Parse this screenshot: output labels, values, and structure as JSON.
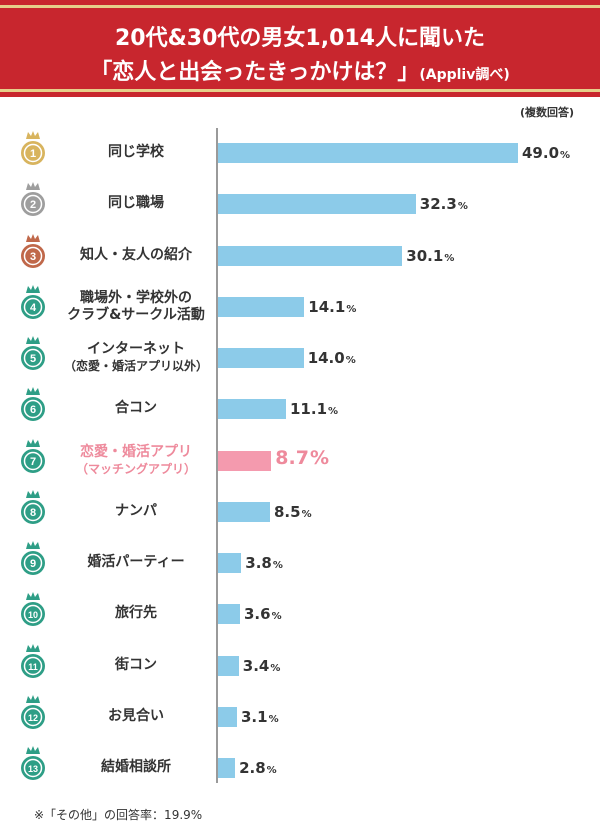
{
  "header": {
    "line1": "20代&30代の男女1,014人に聞いた",
    "line2_main": "「恋人と出会ったきっかけは？」",
    "line2_source": "(Appliv調べ)"
  },
  "note_top": "(複数回答)",
  "footnote": "※「その他」の回答率：19.9%",
  "colors": {
    "header_red": "#c8262e",
    "bar_blue": "#8ccbe9",
    "bar_highlight_pink": "#f49aae",
    "medal_gold": "#d8b45e",
    "medal_silver": "#9e9e9e",
    "medal_bronze": "#c0684a",
    "medal_green": "#2e9e86"
  },
  "chart_data": {
    "type": "bar",
    "orientation": "horizontal",
    "unit": "%",
    "xlim": [
      0,
      49.0
    ],
    "highlight_index": 6,
    "categories": [
      {
        "rank": "1",
        "label": "同じ学校",
        "sub": "",
        "value": 49.0,
        "medal": "gold"
      },
      {
        "rank": "2",
        "label": "同じ職場",
        "sub": "",
        "value": 32.3,
        "medal": "silver"
      },
      {
        "rank": "3",
        "label": "知人・友人の紹介",
        "sub": "",
        "value": 30.1,
        "medal": "bronze"
      },
      {
        "rank": "4",
        "label": "職場外・学校外の",
        "sub": "クラブ&サークル活動",
        "value": 14.1,
        "medal": "green"
      },
      {
        "rank": "5",
        "label": "インターネット",
        "sub": "（恋愛・婚活アプリ以外）",
        "value": 14.0,
        "medal": "green"
      },
      {
        "rank": "6",
        "label": "合コン",
        "sub": "",
        "value": 11.1,
        "medal": "green"
      },
      {
        "rank": "7",
        "label": "恋愛・婚活アプリ",
        "sub": "（マッチングアプリ）",
        "value": 8.7,
        "medal": "green"
      },
      {
        "rank": "8",
        "label": "ナンパ",
        "sub": "",
        "value": 8.5,
        "medal": "green"
      },
      {
        "rank": "9",
        "label": "婚活パーティー",
        "sub": "",
        "value": 3.8,
        "medal": "green"
      },
      {
        "rank": "10",
        "label": "旅行先",
        "sub": "",
        "value": 3.6,
        "medal": "green"
      },
      {
        "rank": "11",
        "label": "街コン",
        "sub": "",
        "value": 3.4,
        "medal": "green"
      },
      {
        "rank": "12",
        "label": "お見合い",
        "sub": "",
        "value": 3.1,
        "medal": "green"
      },
      {
        "rank": "13",
        "label": "結婚相談所",
        "sub": "",
        "value": 2.8,
        "medal": "green"
      }
    ]
  }
}
